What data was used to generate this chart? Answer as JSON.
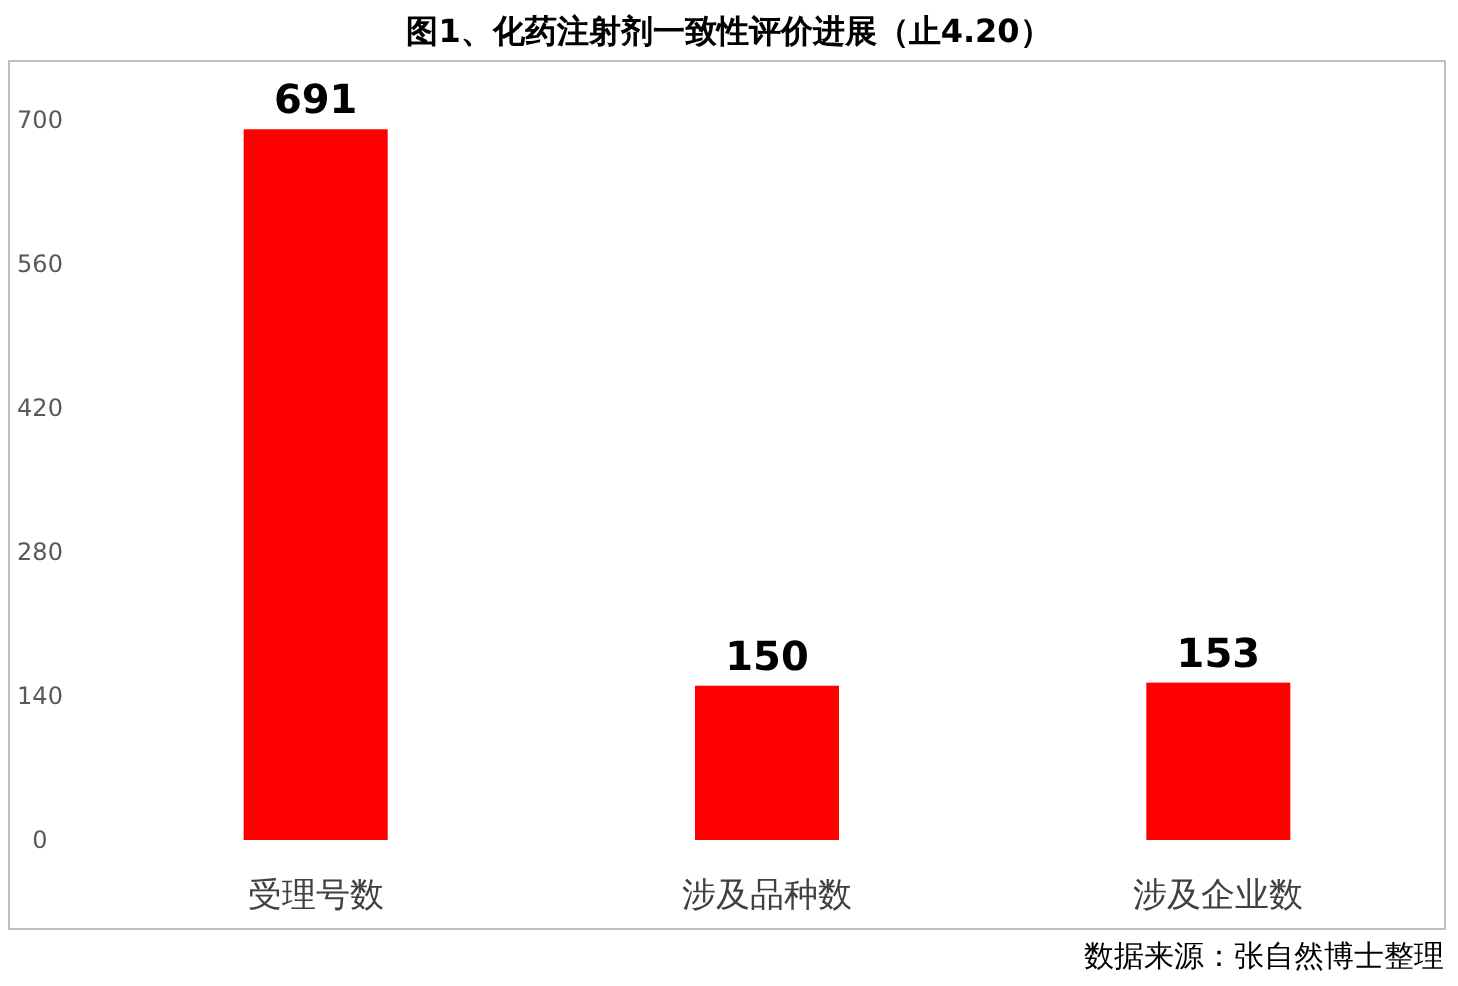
{
  "chart_data": {
    "type": "bar",
    "title": "图1、化药注射剂一致性评价进展（止4.20）",
    "categories": [
      "受理号数",
      "涉及品种数",
      "涉及企业数"
    ],
    "values": [
      691,
      150,
      153
    ],
    "color": "#ff0000",
    "ylim": [
      0,
      700
    ],
    "yticks": [
      0,
      140,
      280,
      420,
      560,
      700
    ],
    "data_labels": true,
    "annotations": [
      "数据来源：张自然博士整理"
    ]
  }
}
